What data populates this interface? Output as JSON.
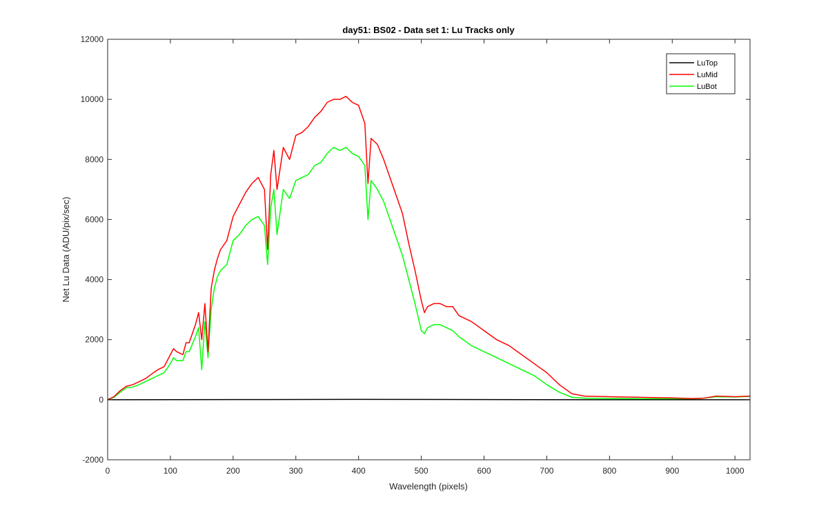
{
  "chart_data": {
    "type": "line",
    "title": "day51: BS02 - Data set 1: Lu Tracks only",
    "xlabel": "Wavelength (pixels)",
    "ylabel": "Net Lu Data (ADU/pix/sec)",
    "xlim": [
      0,
      1024
    ],
    "ylim": [
      -2000,
      12000
    ],
    "xticks": [
      0,
      100,
      200,
      300,
      400,
      500,
      600,
      700,
      800,
      900,
      1000
    ],
    "yticks": [
      -2000,
      0,
      2000,
      4000,
      6000,
      8000,
      10000,
      12000
    ],
    "grid": false,
    "legend_position": "top-right",
    "series": [
      {
        "name": "LuTop",
        "color": "#000000",
        "x": [
          0,
          200,
          400,
          600,
          800,
          1024
        ],
        "y": [
          0,
          5,
          10,
          5,
          0,
          0
        ]
      },
      {
        "name": "LuMid",
        "color": "#ff0000",
        "x": [
          0,
          10,
          20,
          30,
          40,
          50,
          60,
          70,
          80,
          90,
          100,
          105,
          110,
          120,
          125,
          130,
          140,
          145,
          150,
          155,
          160,
          165,
          170,
          175,
          180,
          190,
          200,
          210,
          220,
          230,
          240,
          250,
          255,
          260,
          265,
          270,
          280,
          290,
          300,
          310,
          320,
          330,
          340,
          350,
          360,
          370,
          380,
          390,
          400,
          410,
          415,
          420,
          430,
          440,
          450,
          460,
          470,
          480,
          490,
          500,
          505,
          510,
          520,
          530,
          540,
          550,
          560,
          580,
          600,
          620,
          640,
          660,
          680,
          700,
          720,
          740,
          760,
          800,
          850,
          900,
          930,
          950,
          970,
          1000,
          1024
        ],
        "y": [
          0,
          100,
          300,
          450,
          500,
          600,
          700,
          850,
          1000,
          1100,
          1500,
          1700,
          1600,
          1500,
          1900,
          1900,
          2500,
          2900,
          2000,
          3200,
          1600,
          3700,
          4300,
          4700,
          5000,
          5300,
          6100,
          6500,
          6900,
          7200,
          7400,
          7000,
          5000,
          7500,
          8300,
          7000,
          8400,
          8000,
          8800,
          8900,
          9100,
          9400,
          9600,
          9900,
          10000,
          10000,
          10100,
          9900,
          9800,
          9200,
          7200,
          8700,
          8500,
          8000,
          7400,
          6800,
          6200,
          5200,
          4300,
          3300,
          2900,
          3100,
          3200,
          3200,
          3100,
          3100,
          2800,
          2600,
          2300,
          2000,
          1800,
          1500,
          1200,
          900,
          500,
          200,
          120,
          100,
          80,
          60,
          40,
          50,
          120,
          100,
          120
        ]
      },
      {
        "name": "LuBot",
        "color": "#00ff00",
        "x": [
          0,
          10,
          20,
          30,
          40,
          50,
          60,
          70,
          80,
          90,
          100,
          105,
          110,
          120,
          125,
          130,
          140,
          145,
          150,
          155,
          160,
          165,
          170,
          175,
          180,
          190,
          200,
          210,
          220,
          230,
          240,
          250,
          255,
          260,
          265,
          270,
          280,
          290,
          300,
          310,
          320,
          330,
          340,
          350,
          360,
          370,
          380,
          390,
          400,
          410,
          415,
          420,
          430,
          440,
          450,
          460,
          470,
          480,
          490,
          500,
          505,
          510,
          520,
          530,
          540,
          550,
          560,
          580,
          600,
          620,
          640,
          660,
          680,
          700,
          720,
          740,
          760,
          800,
          850,
          900,
          930,
          950,
          970,
          1000,
          1024
        ],
        "y": [
          0,
          80,
          250,
          400,
          420,
          500,
          600,
          700,
          800,
          900,
          1200,
          1400,
          1300,
          1300,
          1600,
          1600,
          2100,
          2400,
          1000,
          2600,
          1400,
          3000,
          3700,
          4100,
          4300,
          4500,
          5300,
          5500,
          5800,
          6000,
          6100,
          5800,
          4500,
          6400,
          7000,
          5500,
          7000,
          6700,
          7300,
          7400,
          7500,
          7800,
          7900,
          8200,
          8400,
          8300,
          8400,
          8200,
          8100,
          7800,
          6000,
          7300,
          7000,
          6600,
          6000,
          5400,
          4800,
          4000,
          3200,
          2300,
          2200,
          2400,
          2500,
          2500,
          2400,
          2300,
          2100,
          1800,
          1600,
          1400,
          1200,
          1000,
          800,
          500,
          250,
          80,
          50,
          40,
          30,
          30,
          20,
          50,
          100,
          90,
          110
        ]
      }
    ]
  }
}
